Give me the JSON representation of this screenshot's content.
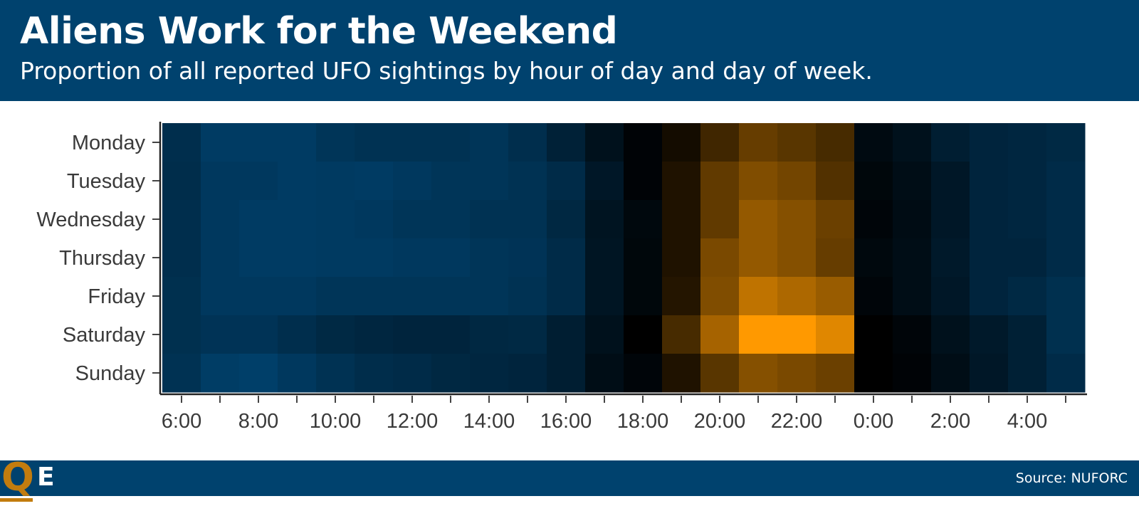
{
  "title": "Aliens Work for the Weekend",
  "subtitle": "Proportion of all reported UFO sightings by hour of day and day of week.",
  "source": "Source: NUFORC",
  "logo": {
    "letter_q": "Q",
    "letter_e": "E"
  },
  "colors": {
    "header_bg": "#00426e",
    "accent": "#c27c0e",
    "scale_low": "#00426e",
    "scale_mid": "#000000",
    "scale_high": "#ff9900"
  },
  "chart_data": {
    "type": "heatmap",
    "x_hours": [
      "6",
      "7",
      "8",
      "9",
      "10",
      "11",
      "12",
      "13",
      "14",
      "15",
      "16",
      "17",
      "18",
      "19",
      "20",
      "21",
      "22",
      "23",
      "0",
      "1",
      "2",
      "3",
      "4",
      "5"
    ],
    "x_tick_labels": [
      "6:00",
      "8:00",
      "10:00",
      "12:00",
      "14:00",
      "16:00",
      "18:00",
      "20:00",
      "22:00",
      "0:00",
      "2:00",
      "4:00"
    ],
    "y_categories": [
      "Monday",
      "Tuesday",
      "Wednesday",
      "Thursday",
      "Friday",
      "Saturday",
      "Sunday"
    ],
    "values": [
      [
        -0.7,
        -0.9,
        -0.9,
        -0.9,
        -0.8,
        -0.75,
        -0.75,
        -0.75,
        -0.8,
        -0.7,
        -0.5,
        -0.25,
        -0.05,
        0.08,
        0.25,
        0.4,
        0.35,
        0.28,
        -0.15,
        -0.25,
        -0.45,
        -0.55,
        -0.58,
        -0.62
      ],
      [
        -0.68,
        -0.85,
        -0.85,
        -0.9,
        -0.88,
        -0.9,
        -0.85,
        -0.8,
        -0.8,
        -0.75,
        -0.65,
        -0.35,
        -0.05,
        0.12,
        0.38,
        0.5,
        0.45,
        0.32,
        -0.1,
        -0.2,
        -0.35,
        -0.55,
        -0.58,
        -0.65
      ],
      [
        -0.7,
        -0.85,
        -0.9,
        -0.9,
        -0.88,
        -0.85,
        -0.8,
        -0.8,
        -0.75,
        -0.75,
        -0.6,
        -0.3,
        -0.12,
        0.12,
        0.38,
        0.58,
        0.52,
        0.42,
        -0.08,
        -0.18,
        -0.35,
        -0.55,
        -0.58,
        -0.65
      ],
      [
        -0.7,
        -0.85,
        -0.9,
        -0.9,
        -0.88,
        -0.88,
        -0.85,
        -0.85,
        -0.8,
        -0.78,
        -0.65,
        -0.32,
        -0.1,
        0.12,
        0.48,
        0.58,
        0.52,
        0.4,
        -0.12,
        -0.2,
        -0.38,
        -0.55,
        -0.55,
        -0.65
      ],
      [
        -0.72,
        -0.85,
        -0.85,
        -0.85,
        -0.8,
        -0.8,
        -0.8,
        -0.8,
        -0.8,
        -0.75,
        -0.65,
        -0.32,
        -0.1,
        0.14,
        0.5,
        0.75,
        0.68,
        0.6,
        -0.08,
        -0.2,
        -0.35,
        -0.55,
        -0.62,
        -0.72
      ],
      [
        -0.72,
        -0.78,
        -0.78,
        -0.7,
        -0.62,
        -0.58,
        -0.55,
        -0.55,
        -0.6,
        -0.62,
        -0.45,
        -0.25,
        0.0,
        0.28,
        0.65,
        1.0,
        1.0,
        0.88,
        0.0,
        -0.08,
        -0.25,
        -0.38,
        -0.48,
        -0.72
      ],
      [
        -0.75,
        -0.92,
        -0.95,
        -0.85,
        -0.75,
        -0.68,
        -0.65,
        -0.6,
        -0.58,
        -0.55,
        -0.45,
        -0.2,
        -0.08,
        0.12,
        0.35,
        0.52,
        0.48,
        0.42,
        0.0,
        -0.05,
        -0.2,
        -0.35,
        -0.48,
        -0.65
      ]
    ]
  }
}
